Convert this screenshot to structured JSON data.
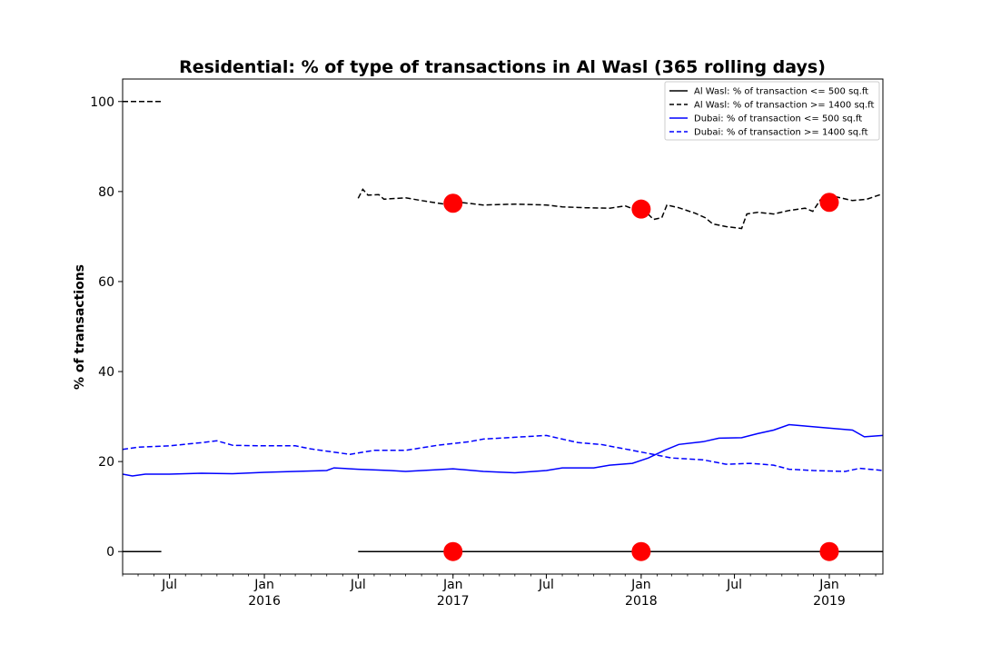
{
  "chart_data": {
    "type": "line",
    "title": "Residential: % of type of transactions in Al Wasl (365 rolling days)",
    "xlabel": "",
    "ylabel": "% of transactions",
    "xlim": [
      "2015-04-01",
      "2019-04-15"
    ],
    "ylim": [
      -5,
      105
    ],
    "grid": false,
    "legend_position": "top-right",
    "y_ticks": [
      0,
      20,
      40,
      60,
      80,
      100
    ],
    "x_ticks": [
      {
        "date": "2015-07-01",
        "label": "Jul",
        "year": ""
      },
      {
        "date": "2016-01-01",
        "label": "Jan",
        "year": "2016"
      },
      {
        "date": "2016-07-01",
        "label": "Jul",
        "year": ""
      },
      {
        "date": "2017-01-01",
        "label": "Jan",
        "year": "2017"
      },
      {
        "date": "2017-07-01",
        "label": "Jul",
        "year": ""
      },
      {
        "date": "2018-01-01",
        "label": "Jan",
        "year": "2018"
      },
      {
        "date": "2018-07-01",
        "label": "Jul",
        "year": ""
      },
      {
        "date": "2019-01-01",
        "label": "Jan",
        "year": "2019"
      }
    ],
    "series": [
      {
        "name": "Al Wasl: % of transaction <= 500 sq.ft",
        "color": "#000000",
        "style": "solid",
        "segments": [
          [
            [
              "2015-04-01",
              0
            ],
            [
              "2015-06-15",
              0
            ]
          ],
          [
            [
              "2016-07-01",
              0
            ],
            [
              "2019-04-15",
              0
            ]
          ]
        ]
      },
      {
        "name": "Al Wasl: % of transaction >= 1400 sq.ft",
        "color": "#000000",
        "style": "dashed",
        "segments": [
          [
            [
              "2015-04-01",
              100
            ],
            [
              "2015-06-15",
              100
            ]
          ],
          [
            [
              "2016-07-01",
              78.5
            ],
            [
              "2016-07-10",
              80.5
            ],
            [
              "2016-07-20",
              79.2
            ],
            [
              "2016-08-10",
              79.3
            ],
            [
              "2016-08-20",
              78.3
            ],
            [
              "2016-10-01",
              78.6
            ],
            [
              "2016-11-01",
              78.0
            ],
            [
              "2016-12-15",
              77.2
            ],
            [
              "2017-01-15",
              77.6
            ],
            [
              "2017-03-01",
              77.0
            ],
            [
              "2017-05-01",
              77.2
            ],
            [
              "2017-07-01",
              77.0
            ],
            [
              "2017-08-01",
              76.6
            ],
            [
              "2017-09-15",
              76.4
            ],
            [
              "2017-11-01",
              76.3
            ],
            [
              "2017-12-01",
              76.8
            ],
            [
              "2017-12-20",
              76.0
            ],
            [
              "2018-01-10",
              75.5
            ],
            [
              "2018-01-25",
              73.8
            ],
            [
              "2018-02-10",
              74.2
            ],
            [
              "2018-02-20",
              77.0
            ],
            [
              "2018-03-15",
              76.4
            ],
            [
              "2018-04-15",
              75.2
            ],
            [
              "2018-05-05",
              74.2
            ],
            [
              "2018-05-20",
              72.8
            ],
            [
              "2018-06-15",
              72.2
            ],
            [
              "2018-07-15",
              71.8
            ],
            [
              "2018-07-25",
              75.0
            ],
            [
              "2018-08-15",
              75.4
            ],
            [
              "2018-09-15",
              75.0
            ],
            [
              "2018-10-15",
              75.8
            ],
            [
              "2018-11-15",
              76.3
            ],
            [
              "2018-11-30",
              75.6
            ],
            [
              "2018-12-15",
              78.2
            ],
            [
              "2019-01-15",
              78.8
            ],
            [
              "2019-02-15",
              78.0
            ],
            [
              "2019-03-15",
              78.3
            ],
            [
              "2019-04-15",
              79.5
            ]
          ]
        ]
      },
      {
        "name": "Dubai: % of transaction <= 500 sq.ft",
        "color": "#0000ff",
        "style": "solid",
        "segments": [
          [
            [
              "2015-04-01",
              17.2
            ],
            [
              "2015-04-20",
              16.8
            ],
            [
              "2015-05-15",
              17.2
            ],
            [
              "2015-07-01",
              17.2
            ],
            [
              "2015-09-01",
              17.4
            ],
            [
              "2015-11-01",
              17.3
            ],
            [
              "2016-01-01",
              17.6
            ],
            [
              "2016-03-01",
              17.8
            ],
            [
              "2016-05-01",
              18.0
            ],
            [
              "2016-05-15",
              18.6
            ],
            [
              "2016-07-01",
              18.3
            ],
            [
              "2016-09-01",
              18.0
            ],
            [
              "2016-10-01",
              17.8
            ],
            [
              "2016-12-01",
              18.2
            ],
            [
              "2017-01-01",
              18.4
            ],
            [
              "2017-03-01",
              17.8
            ],
            [
              "2017-05-01",
              17.5
            ],
            [
              "2017-07-01",
              18.0
            ],
            [
              "2017-08-01",
              18.6
            ],
            [
              "2017-10-01",
              18.6
            ],
            [
              "2017-11-01",
              19.2
            ],
            [
              "2017-12-15",
              19.6
            ],
            [
              "2018-01-15",
              20.8
            ],
            [
              "2018-02-15",
              22.5
            ],
            [
              "2018-03-15",
              23.8
            ],
            [
              "2018-05-01",
              24.4
            ],
            [
              "2018-06-01",
              25.2
            ],
            [
              "2018-07-15",
              25.3
            ],
            [
              "2018-08-15",
              26.2
            ],
            [
              "2018-09-15",
              27.0
            ],
            [
              "2018-10-15",
              28.2
            ],
            [
              "2018-11-15",
              27.9
            ],
            [
              "2018-12-15",
              27.6
            ],
            [
              "2019-01-15",
              27.3
            ],
            [
              "2019-02-15",
              27.0
            ],
            [
              "2019-03-10",
              25.5
            ],
            [
              "2019-04-15",
              25.8
            ]
          ]
        ]
      },
      {
        "name": "Dubai: % of transaction >= 1400 sq.ft",
        "color": "#0000ff",
        "style": "dashed",
        "segments": [
          [
            [
              "2015-04-01",
              22.7
            ],
            [
              "2015-05-01",
              23.2
            ],
            [
              "2015-07-01",
              23.5
            ],
            [
              "2015-09-01",
              24.2
            ],
            [
              "2015-10-01",
              24.6
            ],
            [
              "2015-11-01",
              23.6
            ],
            [
              "2016-01-01",
              23.5
            ],
            [
              "2016-03-01",
              23.5
            ],
            [
              "2016-04-01",
              22.8
            ],
            [
              "2016-06-15",
              21.6
            ],
            [
              "2016-08-01",
              22.5
            ],
            [
              "2016-10-01",
              22.5
            ],
            [
              "2016-12-01",
              23.6
            ],
            [
              "2017-02-01",
              24.4
            ],
            [
              "2017-03-01",
              25.0
            ],
            [
              "2017-05-01",
              25.4
            ],
            [
              "2017-07-01",
              25.8
            ],
            [
              "2017-08-01",
              25.0
            ],
            [
              "2017-09-01",
              24.2
            ],
            [
              "2017-10-15",
              23.8
            ],
            [
              "2017-12-01",
              22.8
            ],
            [
              "2018-01-15",
              21.8
            ],
            [
              "2018-03-01",
              20.8
            ],
            [
              "2018-05-01",
              20.4
            ],
            [
              "2018-06-15",
              19.4
            ],
            [
              "2018-08-01",
              19.6
            ],
            [
              "2018-09-15",
              19.2
            ],
            [
              "2018-10-15",
              18.3
            ],
            [
              "2018-12-01",
              18.0
            ],
            [
              "2019-02-01",
              17.8
            ],
            [
              "2019-03-01",
              18.5
            ],
            [
              "2019-04-15",
              18.0
            ]
          ]
        ]
      }
    ],
    "markers": {
      "color": "#ff0000",
      "points": [
        [
          "2017-01-01",
          77.4
        ],
        [
          "2018-01-01",
          76.1
        ],
        [
          "2019-01-01",
          77.6
        ],
        [
          "2017-01-01",
          0
        ],
        [
          "2018-01-01",
          0
        ],
        [
          "2019-01-01",
          0
        ]
      ]
    }
  }
}
